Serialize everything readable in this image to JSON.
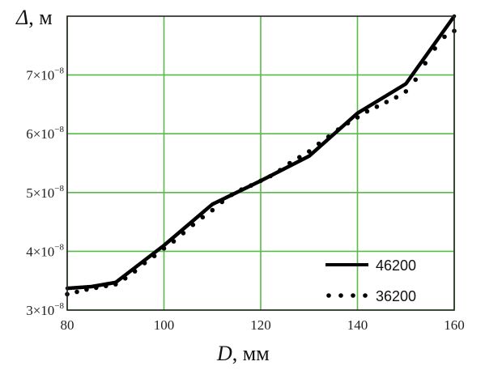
{
  "chart_data": {
    "type": "line",
    "xlabel": {
      "symbol": "D",
      "unit": ", мм"
    },
    "ylabel": {
      "symbol": "Δ",
      "unit": ", м"
    },
    "xlim": [
      80,
      160
    ],
    "ylim": [
      3e-08,
      8e-08
    ],
    "x_ticks": [
      "80",
      "100",
      "120",
      "140",
      "160"
    ],
    "y_ticks": [
      {
        "mantissa": "3×10",
        "exp": "−8"
      },
      {
        "mantissa": "4×10",
        "exp": "−8"
      },
      {
        "mantissa": "5×10",
        "exp": "−8"
      },
      {
        "mantissa": "6×10",
        "exp": "−8"
      },
      {
        "mantissa": "7×10",
        "exp": "−8"
      }
    ],
    "grid": true,
    "grid_color": "#59b94a",
    "legend_position": "bottom-right",
    "series": [
      {
        "name": "46200",
        "style": "solid",
        "color": "#000000",
        "x": [
          80,
          85,
          90,
          100,
          110,
          120,
          130,
          140,
          150,
          160
        ],
        "y": [
          3.37e-08,
          3.4e-08,
          3.47e-08,
          4.1e-08,
          4.8e-08,
          5.2e-08,
          5.62e-08,
          6.35e-08,
          6.85e-08,
          8e-08
        ]
      },
      {
        "name": "36200",
        "style": "dotted",
        "color": "#000000",
        "x": [
          80,
          82,
          84,
          86,
          88,
          90,
          92,
          94,
          96,
          98,
          100,
          102,
          104,
          106,
          108,
          110,
          112,
          114,
          116,
          118,
          120,
          122,
          124,
          126,
          128,
          130,
          132,
          134,
          136,
          138,
          140,
          142,
          144,
          146,
          148,
          150,
          152,
          154,
          156,
          158,
          160
        ],
        "y": [
          3.27e-08,
          3.31e-08,
          3.35e-08,
          3.38e-08,
          3.41e-08,
          3.44e-08,
          3.54e-08,
          3.66e-08,
          3.8e-08,
          3.92e-08,
          4.05e-08,
          4.17e-08,
          4.31e-08,
          4.45e-08,
          4.58e-08,
          4.7e-08,
          4.84e-08,
          4.96e-08,
          5.05e-08,
          5.12e-08,
          5.2e-08,
          5.28e-08,
          5.38e-08,
          5.5e-08,
          5.6e-08,
          5.7e-08,
          5.83e-08,
          5.95e-08,
          6.07e-08,
          6.18e-08,
          6.28e-08,
          6.38e-08,
          6.46e-08,
          6.54e-08,
          6.62e-08,
          6.72e-08,
          6.92e-08,
          7.2e-08,
          7.45e-08,
          7.65e-08,
          7.75e-08
        ]
      }
    ]
  }
}
